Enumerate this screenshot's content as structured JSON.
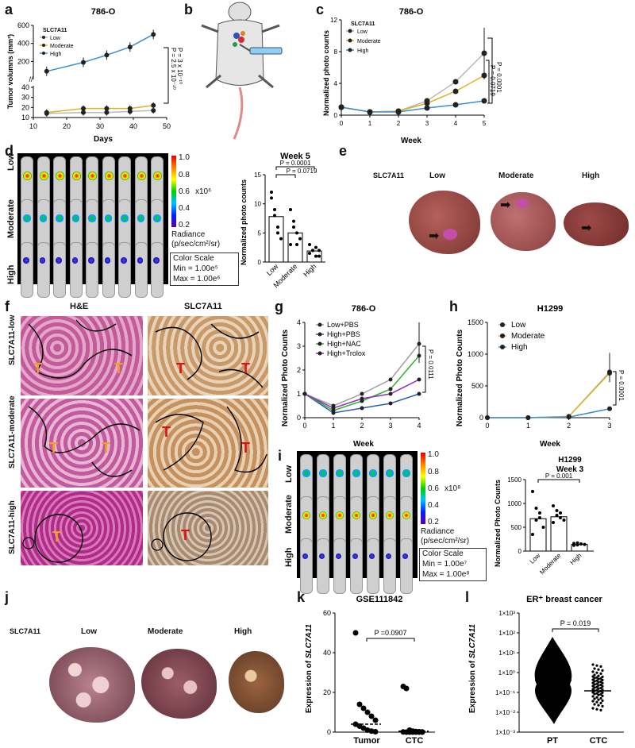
{
  "panels": {
    "a": {
      "letter": "a",
      "title": "786-O",
      "xlabel": "Days",
      "ylabel": "Tumor volumns (mm³)",
      "legend_title": "SLC7A11",
      "series_names": [
        "Low",
        "Moderate",
        "High"
      ],
      "pvals": [
        "P = 2.5 x 10⁻¹⁰",
        "P = 3 x 10⁻¹⁰"
      ],
      "yticks_top": [
        "200",
        "400",
        "600"
      ],
      "yticks_bottom": [
        "10",
        "20",
        "30",
        "40"
      ],
      "xticks": [
        "10",
        "20",
        "30",
        "40",
        "50"
      ]
    },
    "b": {
      "letter": "b"
    },
    "c": {
      "letter": "c",
      "title": "786-O",
      "xlabel": "Week",
      "ylabel": "Normalized photo counts",
      "legend_title": "SLC7A11",
      "series_names": [
        "Low",
        "Moderate",
        "High"
      ],
      "pvals": [
        "P = 0.0001",
        "P = 0.0719"
      ],
      "xticks": [
        "0",
        "1",
        "2",
        "3",
        "4",
        "5"
      ],
      "yticks": [
        "0",
        "4",
        "8",
        "12"
      ]
    },
    "d": {
      "letter": "d",
      "row_labels": [
        "Low",
        "Moderate",
        "High"
      ],
      "scale_ticks": [
        "1.0",
        "0.8",
        "0.6",
        "0.4",
        "0.2"
      ],
      "scale_unit": "x10⁶",
      "radiance": "Radiance",
      "radiance_unit": "(p/sec/cm²/sr)",
      "color_scale": "Color Scale",
      "min": "Min = 1.00e⁵",
      "max": "Max = 1.00e⁶",
      "bar_title": "Week 5",
      "bar_ylabel": "Normalized photo counts",
      "bar_categories": [
        "Low",
        "Moderate",
        "High"
      ],
      "pvals": [
        "P = 0.0001",
        "P = 0.0719"
      ],
      "yticks": [
        "0",
        "5",
        "10",
        "15"
      ]
    },
    "e": {
      "letter": "e",
      "gene": "SLC7A11",
      "labels": [
        "Low",
        "Moderate",
        "High"
      ]
    },
    "f": {
      "letter": "f",
      "col_titles": [
        "H&E",
        "SLC7A11"
      ],
      "row_labels": [
        "SLC7A11-low",
        "SLC7A11-moderate",
        "SLC7A11-high"
      ],
      "t": "T"
    },
    "g": {
      "letter": "g",
      "title": "786-O",
      "xlabel": "Week",
      "ylabel": "Normalized Photo Counts",
      "series_names": [
        "Low+PBS",
        "High+PBS",
        "High+NAC",
        "High+Trolox"
      ],
      "pval": "P = 0.0111",
      "xticks": [
        "0",
        "1",
        "2",
        "3",
        "4"
      ],
      "yticks": [
        "0",
        "1",
        "2",
        "3",
        "4"
      ]
    },
    "h": {
      "letter": "h",
      "title": "H1299",
      "xlabel": "Week",
      "ylabel": "Normalized Photo Counts",
      "series_names": [
        "Low",
        "Moderate",
        "High"
      ],
      "pval": "P = 0.0001",
      "xticks": [
        "0",
        "1",
        "2",
        "3"
      ],
      "yticks": [
        "0",
        "500",
        "1000",
        "1500"
      ]
    },
    "i": {
      "letter": "i",
      "row_labels": [
        "Low",
        "Moderate",
        "High"
      ],
      "scale_ticks": [
        "1.0",
        "0.8",
        "0.6",
        "0.4",
        "0.2"
      ],
      "scale_unit": "x10⁸",
      "radiance": "Radiance",
      "radiance_unit": "(p/sec/cm²/sr)",
      "color_scale": "Color Scale",
      "min": "Min = 1.00e⁷",
      "max": "Max = 1.00e⁸",
      "bar_title": "H1299",
      "bar_subtitle": "Week 3",
      "bar_ylabel": "Normalized Photo Counts",
      "bar_categories": [
        "Low",
        "Moderate",
        "High"
      ],
      "pval": "P = 0.001",
      "yticks": [
        "0",
        "500",
        "1000",
        "1500"
      ]
    },
    "j": {
      "letter": "j",
      "gene": "SLC7A11",
      "labels": [
        "Low",
        "Moderate",
        "High"
      ]
    },
    "k": {
      "letter": "k",
      "title": "GSE111842",
      "ylabel_pre": "Expression of ",
      "ylabel_gene": "SLC7A11",
      "categories": [
        "Tumor",
        "CTC"
      ],
      "pval": "P =0.0907",
      "yticks": [
        "0",
        "20",
        "40",
        "60"
      ]
    },
    "l": {
      "letter": "l",
      "title": "ER⁺ breast cancer",
      "ylabel_pre": "Expression of ",
      "ylabel_gene": "SLC7A11",
      "categories": [
        "PT",
        "CTC"
      ],
      "pval": "P = 0.019",
      "yticks": [
        "1×10³",
        "1×10²",
        "1×10¹",
        "1×10⁰",
        "1×10⁻¹",
        "1×10⁻²",
        "1×10⁻³"
      ]
    }
  },
  "colors": {
    "low": "#b8b8b8",
    "moderate": "#e2b020",
    "high": "#3a8fd0",
    "lowpbs": "#a0a0a0",
    "highpbs": "#2c5fb0",
    "nac": "#35b035",
    "trolox": "#8a30c0",
    "he": "#c0428a",
    "ihc": "#b98a5a",
    "liver": "#8e3f3c"
  },
  "chart_data": [
    {
      "type": "line",
      "panel": "a",
      "x": [
        14,
        25,
        32,
        39,
        46
      ],
      "series": [
        {
          "name": "Low",
          "values": [
            14,
            15,
            15,
            16,
            17
          ]
        },
        {
          "name": "Moderate",
          "values": [
            15,
            19,
            19,
            19,
            22
          ]
        },
        {
          "name": "High",
          "values": [
            90,
            190,
            270,
            360,
            500
          ]
        }
      ]
    },
    {
      "type": "line",
      "panel": "c",
      "x": [
        0,
        1,
        2,
        3,
        4,
        5
      ],
      "series": [
        {
          "name": "Low",
          "values": [
            1,
            0.4,
            0.5,
            1.8,
            4.2,
            7.8
          ]
        },
        {
          "name": "Moderate",
          "values": [
            1,
            0.4,
            0.5,
            1.5,
            3.0,
            5.0
          ]
        },
        {
          "name": "High",
          "values": [
            1,
            0.4,
            0.4,
            0.9,
            1.3,
            1.8
          ]
        }
      ]
    },
    {
      "type": "bar",
      "panel": "d",
      "categories": [
        "Low",
        "Moderate",
        "High"
      ],
      "values": [
        7.8,
        5.0,
        1.9
      ]
    },
    {
      "type": "line",
      "panel": "g",
      "x": [
        0,
        1,
        2,
        3,
        4
      ],
      "series": [
        {
          "name": "Low+PBS",
          "values": [
            1,
            0.5,
            1.0,
            1.6,
            3.1
          ]
        },
        {
          "name": "High+PBS",
          "values": [
            1,
            0.2,
            0.4,
            0.6,
            1.0
          ]
        },
        {
          "name": "High+NAC",
          "values": [
            1,
            0.3,
            0.7,
            1.2,
            2.6
          ]
        },
        {
          "name": "High+Trolox",
          "values": [
            1,
            0.4,
            0.8,
            1.0,
            1.6
          ]
        }
      ]
    },
    {
      "type": "line",
      "panel": "h",
      "x": [
        0,
        1,
        2,
        3
      ],
      "series": [
        {
          "name": "Low",
          "values": [
            0,
            0,
            20,
            720
          ]
        },
        {
          "name": "Moderate",
          "values": [
            0,
            0,
            20,
            700
          ]
        },
        {
          "name": "High",
          "values": [
            0,
            0,
            10,
            140
          ]
        }
      ]
    },
    {
      "type": "bar",
      "panel": "i",
      "categories": [
        "Low",
        "Moderate",
        "High"
      ],
      "values": [
        680,
        720,
        140
      ]
    }
  ]
}
